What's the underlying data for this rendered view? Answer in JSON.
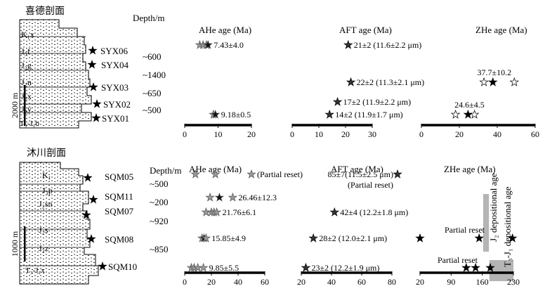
{
  "sections": [
    {
      "title": "喜德剖面",
      "depth_label": "Depth/m",
      "scale_label": "2000 m",
      "formations": [
        "K₁x",
        "J₃f",
        "J₂g",
        "J₂n",
        "J₂x",
        "J₂y",
        "T₃-J₁b"
      ],
      "samples": [
        "SYX06",
        "SYX04",
        "SYX03",
        "SYX02",
        "SYX01"
      ],
      "depths": [
        "~600",
        "~1400",
        "~650",
        "~500"
      ],
      "ahe": {
        "title": "AHe age (Ma)",
        "ticks": [
          "0",
          "10",
          "20"
        ],
        "rows": [
          {
            "sample": "SYX06",
            "ages": [
              4.5,
              5.5,
              6.5,
              7.0
            ],
            "label": "7.43±4.0"
          },
          {
            "sample": "SYX01",
            "ages": [
              8.6,
              9.2
            ],
            "label": "9.18±0.5"
          }
        ]
      },
      "aft": {
        "title": "AFT age (Ma)",
        "ticks": [
          "0",
          "10",
          "20",
          "30"
        ],
        "rows": [
          {
            "sample": "SYX06",
            "age": 21,
            "label": "21±2 (11.6±2.2 μm)"
          },
          {
            "sample": "SYX03",
            "age": 22,
            "label": "22±2 (11.3±2.1 μm)"
          },
          {
            "sample": "SYX02",
            "age": 17,
            "label": "17±2 (11.9±2.2 μm)"
          },
          {
            "sample": "SYX01",
            "age": 14,
            "label": "14±2 (11.9±1.7 μm)"
          }
        ]
      },
      "zhe": {
        "title": "ZHe age (Ma)",
        "ticks": [
          "0",
          "20",
          "40",
          "60"
        ],
        "rows": [
          {
            "sample": "SYX03",
            "filled": [
              37.7
            ],
            "open": [
              33,
              49
            ],
            "label": "37.7±10.2"
          },
          {
            "sample": "SYX01",
            "filled": [
              24.6
            ],
            "open": [
              18,
              28
            ],
            "label": "24.6±4.5"
          }
        ]
      }
    },
    {
      "title": "沐川剖面",
      "depth_label": "Depth/m",
      "scale_label": "1000 m",
      "formations": [
        "K₁",
        "J₃p",
        "J₂sn",
        "J₂s",
        "J₂z",
        "T₃-J₁x"
      ],
      "samples": [
        "SQM05",
        "SQM11",
        "SQM07",
        "SQM08",
        "SQM10"
      ],
      "depths": [
        "~500",
        "~200",
        "~920",
        "~850"
      ],
      "ahe": {
        "title": "AHe age (Ma)",
        "ticks": [
          "0",
          "20",
          "40",
          "60"
        ],
        "rows": [
          {
            "sample": "SQM05",
            "ages": [
              8,
              23,
              50
            ],
            "label": "(Partial reset)"
          },
          {
            "sample": "SQM11",
            "ages": [
              19,
              26,
              36
            ],
            "label": "26.46±12.3"
          },
          {
            "sample": "SQM07",
            "ages": [
              16,
              20,
              22,
              24
            ],
            "label": "21.76±6.1"
          },
          {
            "sample": "SQM08",
            "ages": [
              13,
              14.5,
              16
            ],
            "label": "15.85±4.9"
          },
          {
            "sample": "SQM10",
            "ages": [
              5,
              7,
              9.8,
              14
            ],
            "label": "9.85±5.5"
          }
        ]
      },
      "aft": {
        "title": "AFT age (Ma)",
        "ticks": [
          "20",
          "40",
          "60",
          "80"
        ],
        "rows": [
          {
            "sample": "SQM05",
            "age": 85,
            "label": "85±7(11.5±2.5 μm)",
            "note": "(Partial reset)"
          },
          {
            "sample": "SQM07",
            "age": 42,
            "label": "42±4 (12.2±1.8 μm)"
          },
          {
            "sample": "SQM08",
            "age": 28,
            "label": "28±2 (12.0±2.1 μm)"
          },
          {
            "sample": "SQM10",
            "age": 23,
            "label": "23±2 (12.2±1.9 μm)"
          }
        ]
      },
      "zhe": {
        "title": "ZHe age (Ma)",
        "ticks": [
          "20",
          "90",
          "160",
          "230"
        ],
        "rows": [
          {
            "sample": "SQM08",
            "filled": [
              20,
              153,
              228
            ],
            "label": "Partial reset"
          },
          {
            "sample": "SQM10",
            "filled": [
              124,
              145,
              178
            ],
            "label": "Partial reset"
          }
        ],
        "bands": [
          {
            "label": "J₂ depositional age",
            "from": 162,
            "to": 175
          },
          {
            "label": "T₃-J₁ depositional age",
            "from": 176,
            "to": 230
          }
        ]
      }
    }
  ]
}
